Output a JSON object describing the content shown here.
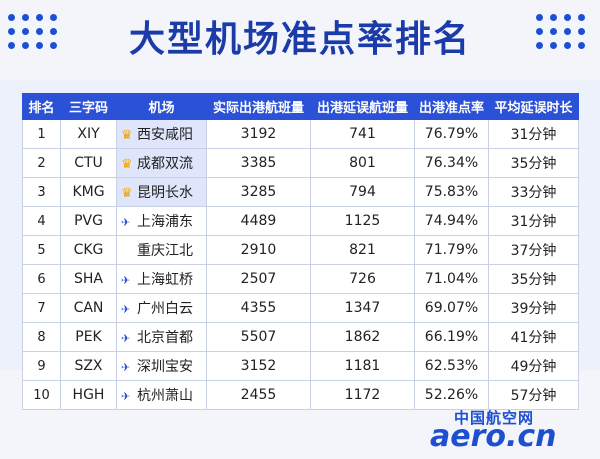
{
  "title": "大型机场准点率排名",
  "colors": {
    "header_bg": "#2b51d6",
    "title": "#1a3ba8",
    "crown": "#f0a500",
    "logo": "#1d4fd0"
  },
  "table": {
    "headers": [
      "排名",
      "三字码",
      "机场",
      "实际出港航班量",
      "出港延误航班量",
      "出港准点率",
      "平均延误时长"
    ],
    "rows": [
      {
        "rank": "1",
        "code": "XIY",
        "airport": "西安咸阳",
        "icon": "crown-icon",
        "actual": "3192",
        "delayed": "741",
        "rate": "76.79%",
        "avg_delay": "31分钟"
      },
      {
        "rank": "2",
        "code": "CTU",
        "airport": "成都双流",
        "icon": "crown-icon",
        "actual": "3385",
        "delayed": "801",
        "rate": "76.34%",
        "avg_delay": "35分钟"
      },
      {
        "rank": "3",
        "code": "KMG",
        "airport": "昆明长水",
        "icon": "crown-icon",
        "actual": "3285",
        "delayed": "794",
        "rate": "75.83%",
        "avg_delay": "33分钟"
      },
      {
        "rank": "4",
        "code": "PVG",
        "airport": "上海浦东",
        "icon": "plane-icon",
        "actual": "4489",
        "delayed": "1125",
        "rate": "74.94%",
        "avg_delay": "31分钟"
      },
      {
        "rank": "5",
        "code": "CKG",
        "airport": "重庆江北",
        "icon": "none",
        "actual": "2910",
        "delayed": "821",
        "rate": "71.79%",
        "avg_delay": "37分钟"
      },
      {
        "rank": "6",
        "code": "SHA",
        "airport": "上海虹桥",
        "icon": "plane-icon",
        "actual": "2507",
        "delayed": "726",
        "rate": "71.04%",
        "avg_delay": "35分钟"
      },
      {
        "rank": "7",
        "code": "CAN",
        "airport": "广州白云",
        "icon": "plane-icon",
        "actual": "4355",
        "delayed": "1347",
        "rate": "69.07%",
        "avg_delay": "39分钟"
      },
      {
        "rank": "8",
        "code": "PEK",
        "airport": "北京首都",
        "icon": "plane-icon",
        "actual": "5507",
        "delayed": "1862",
        "rate": "66.19%",
        "avg_delay": "41分钟"
      },
      {
        "rank": "9",
        "code": "SZX",
        "airport": "深圳宝安",
        "icon": "plane-icon",
        "actual": "3152",
        "delayed": "1181",
        "rate": "62.53%",
        "avg_delay": "49分钟"
      },
      {
        "rank": "10",
        "code": "HGH",
        "airport": "杭州萧山",
        "icon": "plane-icon",
        "actual": "2455",
        "delayed": "1172",
        "rate": "52.26%",
        "avg_delay": "57分钟"
      }
    ]
  },
  "logo": {
    "cn": "中国航空网",
    "en": "aero.cn"
  }
}
